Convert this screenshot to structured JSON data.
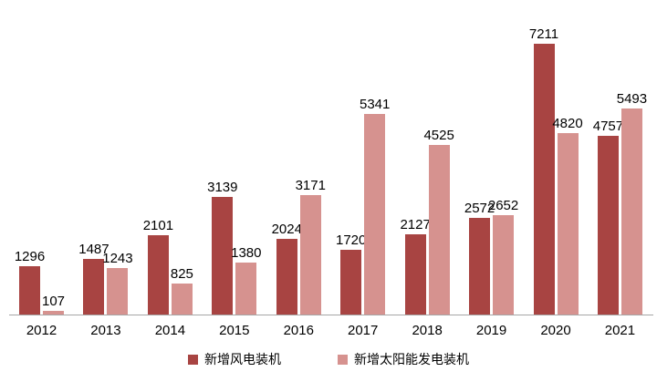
{
  "chart_data": {
    "type": "bar",
    "title": "",
    "xlabel": "",
    "ylabel": "",
    "categories": [
      "2012",
      "2013",
      "2014",
      "2015",
      "2016",
      "2017",
      "2018",
      "2019",
      "2020",
      "2021"
    ],
    "series": [
      {
        "name": "新增风电装机",
        "color": "#a84442",
        "values": [
          1296,
          1487,
          2101,
          3139,
          2024,
          1720,
          2127,
          2572,
          7211,
          4757
        ]
      },
      {
        "name": "新增太阳能发电装机",
        "color": "#d6928f",
        "values": [
          107,
          1243,
          825,
          1380,
          3171,
          5341,
          4525,
          2652,
          4820,
          5493
        ]
      }
    ],
    "ylim": [
      0,
      7500
    ],
    "grid": false,
    "axis": "x-only",
    "value_labels": true,
    "legend_position": "bottom"
  },
  "colors": {
    "wind": "#a84442",
    "solar": "#d6928f",
    "axis_line": "#a6a6a6",
    "text": "#000000"
  }
}
